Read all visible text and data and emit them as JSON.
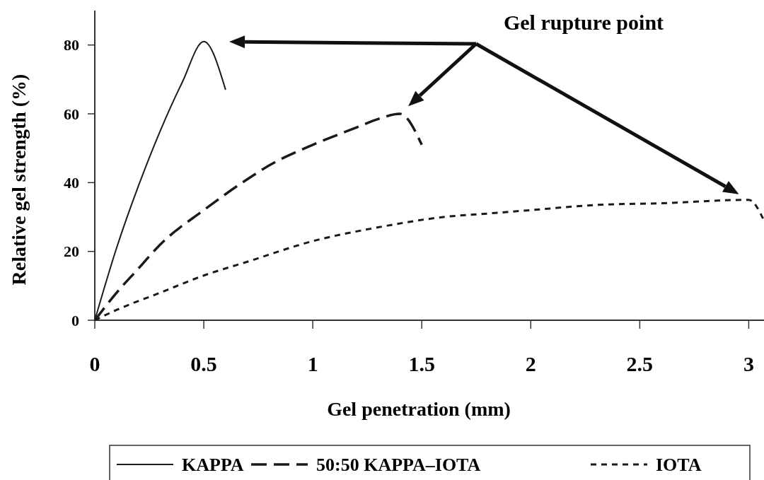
{
  "chart_data": {
    "type": "line",
    "xlabel": "Gel penetration (mm)",
    "ylabel": "Relative gel strength (%)",
    "xlim": [
      0,
      3.07
    ],
    "ylim": [
      0,
      90
    ],
    "xticks": [
      0,
      0.5,
      1,
      1.5,
      2,
      2.5,
      3
    ],
    "yticks": [
      0,
      20,
      40,
      60,
      80
    ],
    "grid": false,
    "legend": "bottom",
    "annotations": [
      "Gel rupture point"
    ],
    "series": [
      {
        "name": "KAPPA",
        "color": "#1a1a1a",
        "line_style": "solid",
        "x": [
          0,
          0.1,
          0.2,
          0.3,
          0.4,
          0.5,
          0.6
        ],
        "values": [
          0,
          21,
          39,
          55,
          69,
          81,
          67
        ]
      },
      {
        "name": "50:50 KAPPA–IOTA",
        "color": "#1a1a1a",
        "line_style": "dashed",
        "x": [
          0,
          0.1,
          0.2,
          0.3,
          0.5,
          0.7,
          0.8,
          1,
          1.2,
          1.3,
          1.4,
          1.5
        ],
        "values": [
          0,
          8,
          15,
          22,
          32,
          41,
          45,
          51,
          56,
          58.5,
          60,
          51
        ]
      },
      {
        "name": "IOTA",
        "color": "#1a1a1a",
        "line_style": "dotted",
        "x": [
          0,
          0.1,
          0.3,
          0.5,
          0.7,
          1,
          1.3,
          1.6,
          1.8,
          2,
          2.3,
          2.6,
          3,
          3.07
        ],
        "values": [
          0,
          3,
          8,
          13,
          17,
          23,
          27,
          30,
          31,
          32,
          33.5,
          34,
          35,
          29
        ]
      }
    ]
  }
}
